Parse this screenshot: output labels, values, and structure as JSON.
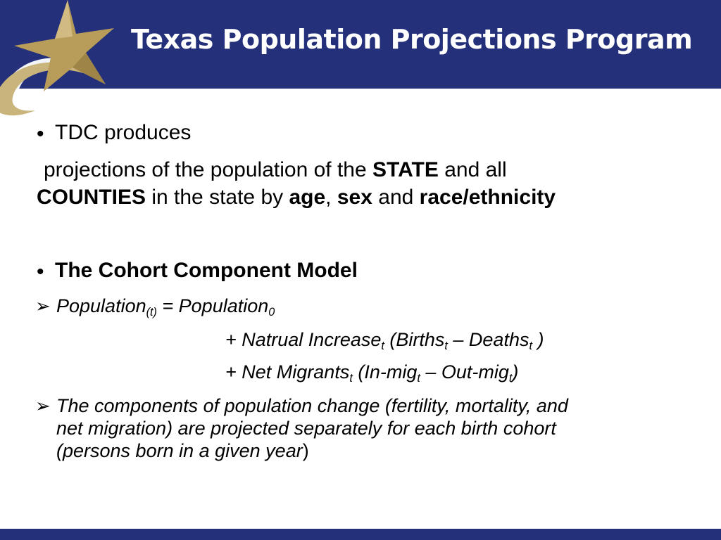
{
  "slide": {
    "title": "Texas Population Projections Program",
    "colors": {
      "header": "#24317a",
      "logo_gold": "#b79c5a"
    },
    "bullet1": {
      "lead": "TDC produces",
      "line2_a": "projections of the population of the ",
      "line2_state": "STATE",
      "line2_b": " and all",
      "line3_counties": "COUNTIES",
      "line3_a": " in the state by ",
      "age": "age",
      "comma": ",",
      "sex": "sex",
      "and": " and ",
      "race": "race/ethnicity"
    },
    "bullet2": {
      "label": "The Cohort Component Model"
    },
    "equation": {
      "population": "Population",
      "sub_t": "(t)",
      "equals": " = Population",
      "sub_0": "0",
      "plus1": "+ Natrual Increase",
      "t1": "t",
      "births": " (Births",
      "t2": "t",
      "dash1": " – Deaths",
      "t3": "t",
      "close1": " )",
      "plus2": "+ Net Migrants",
      "t4": "t",
      "inmig": " (In-mig",
      "t5": "t",
      "dash2": " – Out-mig",
      "t6": "t",
      "close2": ")"
    },
    "components": {
      "line1": "The components of population change (fertility, mortality, and",
      "line2": "net migration) are projected separately for each birth cohort",
      "line3": "(persons born in a given year",
      "line3_end": ")"
    },
    "icons": {
      "bullet": "bullet-dot",
      "arrow": "arrowhead-bullet",
      "logo": "star-logo"
    }
  }
}
